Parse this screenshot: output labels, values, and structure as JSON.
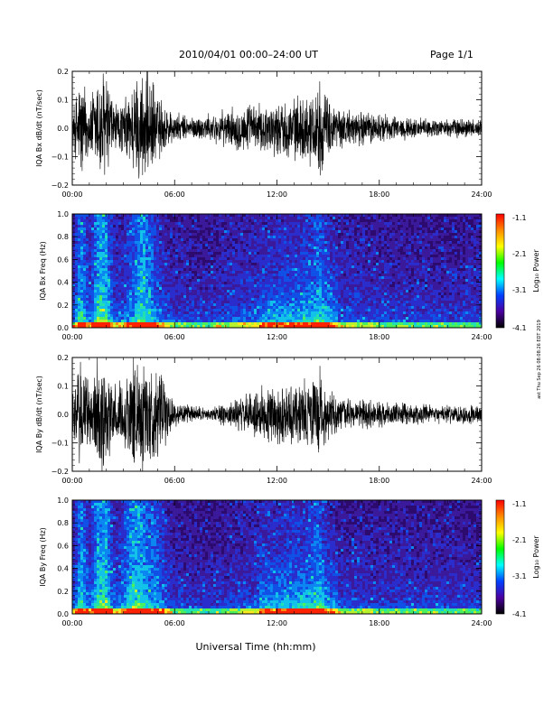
{
  "header": {
    "title": "2010/04/01  00:00–24:00 UT",
    "page": "Page 1/1"
  },
  "footer": {
    "xlabel": "Universal Time (hh:mm)",
    "side_note": "ast Thu Sep 26 08:08:26 EDT 2019"
  },
  "time_ticks": [
    "00:00",
    "06:00",
    "12:00",
    "18:00",
    "24:00"
  ],
  "colorbar": {
    "label": "Log₁₀ Power",
    "ticks": [
      "-1.1",
      "-2.1",
      "-3.1",
      "-4.1"
    ],
    "colors": [
      "#ff0000",
      "#ff8c00",
      "#ffff00",
      "#00ff00",
      "#00ffff",
      "#0040ff",
      "#4b00a0",
      "#000000"
    ]
  },
  "chart_data": [
    {
      "type": "line",
      "ylabel": "IQA Bx dB/dt (nT/sec)",
      "xlim": [
        0,
        24
      ],
      "ylim": [
        -0.2,
        0.2
      ],
      "yticks": [
        "0.2",
        "0.1",
        "0.0",
        "−0.1",
        "−0.2"
      ],
      "envelope_hours": [
        0,
        0.5,
        1,
        1.5,
        2,
        2.5,
        3,
        3.5,
        4,
        4.5,
        5,
        5.5,
        6,
        7,
        8,
        9,
        10,
        11,
        12,
        13,
        14,
        14.5,
        15,
        16,
        17,
        18,
        19,
        20,
        21,
        22,
        23,
        24
      ],
      "envelope_amplitude": [
        0.05,
        0.2,
        0.09,
        0.2,
        0.2,
        0.08,
        0.09,
        0.15,
        0.2,
        0.18,
        0.12,
        0.08,
        0.05,
        0.04,
        0.045,
        0.06,
        0.08,
        0.08,
        0.09,
        0.1,
        0.12,
        0.16,
        0.1,
        0.06,
        0.06,
        0.05,
        0.04,
        0.035,
        0.03,
        0.03,
        0.035,
        0.03
      ]
    },
    {
      "type": "heatmap",
      "ylabel": "IQA Bx Freq (Hz)",
      "xlim": [
        0,
        24
      ],
      "ylim": [
        0.0,
        1.0
      ],
      "yticks": [
        "1.0",
        "0.8",
        "0.6",
        "0.4",
        "0.2",
        "0.0"
      ],
      "colorbar_range": [
        -4.1,
        -1.1
      ]
    },
    {
      "type": "line",
      "ylabel": "IQA By dB/dt (nT/sec)",
      "xlim": [
        0,
        24
      ],
      "ylim": [
        -0.2,
        0.2
      ],
      "yticks": [
        "0.2",
        "0.1",
        "0.0",
        "−0.1",
        "−0.2"
      ],
      "envelope_hours": [
        0,
        0.5,
        1,
        1.5,
        2,
        2.5,
        3,
        3.5,
        4,
        4.5,
        5,
        5.5,
        6,
        7,
        8,
        9,
        10,
        11,
        12,
        13,
        14,
        14.5,
        15,
        16,
        17,
        18,
        19,
        20,
        21,
        22,
        23,
        24
      ],
      "envelope_amplitude": [
        0.07,
        0.2,
        0.1,
        0.2,
        0.2,
        0.09,
        0.12,
        0.2,
        0.2,
        0.16,
        0.15,
        0.1,
        0.04,
        0.03,
        0.02,
        0.04,
        0.06,
        0.09,
        0.1,
        0.11,
        0.12,
        0.16,
        0.08,
        0.05,
        0.05,
        0.04,
        0.04,
        0.035,
        0.03,
        0.03,
        0.035,
        0.03
      ]
    },
    {
      "type": "heatmap",
      "ylabel": "IQA By Freq (Hz)",
      "xlim": [
        0,
        24
      ],
      "ylim": [
        0.0,
        1.0
      ],
      "yticks": [
        "1.0",
        "0.8",
        "0.6",
        "0.4",
        "0.2",
        "0.0"
      ],
      "colorbar_range": [
        -4.1,
        -1.1
      ]
    }
  ]
}
